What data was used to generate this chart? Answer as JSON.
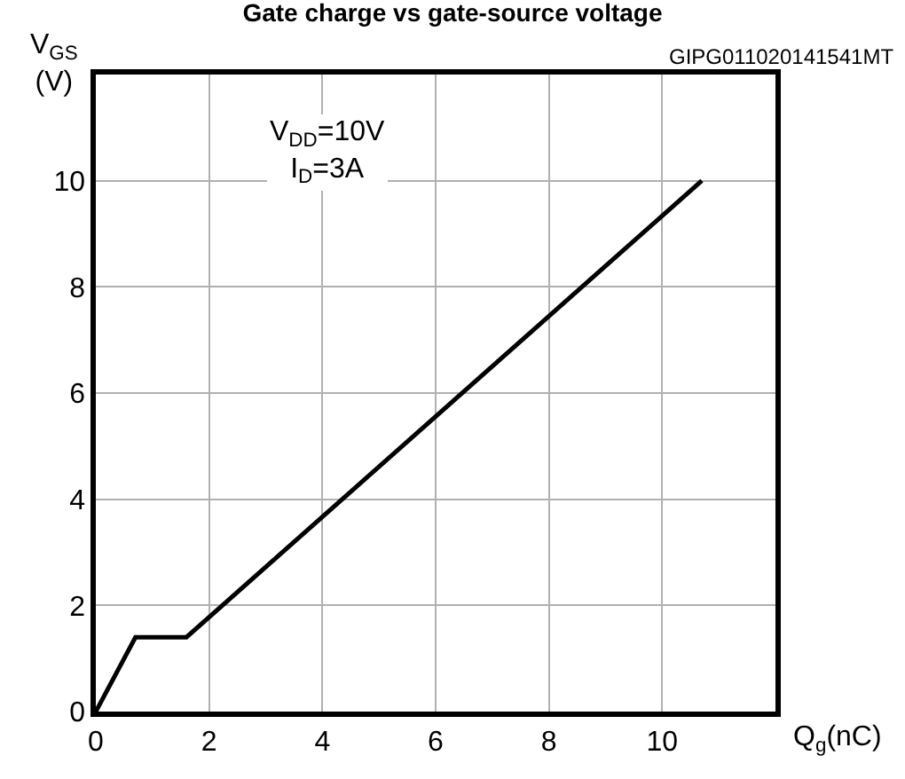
{
  "chart_data": {
    "type": "line",
    "title": "Gate charge vs gate-source voltage",
    "xlabel": "Q$_{g}$(nC)",
    "ylabel": "V$_{GS}$\n(V)",
    "x": [
      0,
      0.7,
      1.6,
      10.7
    ],
    "series": [
      {
        "color": "#000000",
        "values": [
          0,
          1.4,
          1.4,
          10
        ]
      }
    ],
    "xlim": [
      0,
      12
    ],
    "xticks": [
      0,
      2,
      4,
      6,
      8,
      10
    ],
    "ylim": [
      0,
      12
    ],
    "yticks": [
      0,
      2,
      4,
      6,
      8,
      10
    ],
    "grid": true,
    "marker": "none",
    "line_style": "solid",
    "annotations": [
      "GIPG011020141541MT",
      "V$_{DD}$=10V\nI$_{D}$=3A"
    ]
  }
}
